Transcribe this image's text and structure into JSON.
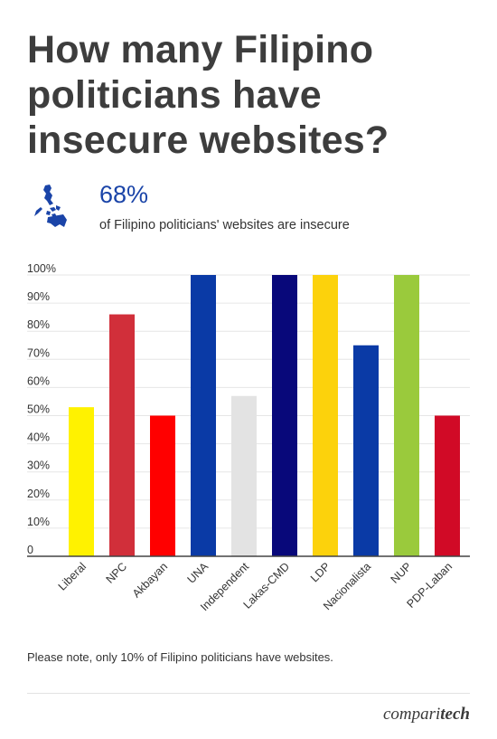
{
  "header": {
    "title": "How many Filipino politicians have insecure websites?"
  },
  "stat": {
    "value": "68%",
    "caption": "of Filipino politicians' websites are insecure",
    "icon": "philippines-map-icon",
    "icon_color": "#1a44a8"
  },
  "chart_data": {
    "type": "bar",
    "categories": [
      "Liberal",
      "NPC",
      "Akbayan",
      "UNA",
      "Independent",
      "Lakas-CMD",
      "LDP",
      "Nacionalista",
      "NUP",
      "PDP-Laban"
    ],
    "values": [
      53,
      86,
      50,
      100,
      57,
      100,
      100,
      75,
      100,
      50
    ],
    "colors": [
      "#fff200",
      "#d12f3a",
      "#ff0000",
      "#0a3aa6",
      "#e3e3e3",
      "#08087a",
      "#fcd20c",
      "#0a3aa6",
      "#9aca3c",
      "#d10a26"
    ],
    "ylim": [
      0,
      100
    ],
    "yticks": [
      0,
      10,
      20,
      30,
      40,
      50,
      60,
      70,
      80,
      90,
      100
    ],
    "ytick_labels": [
      "0",
      "10%",
      "20%",
      "30%",
      "40%",
      "50%",
      "60%",
      "70%",
      "80%",
      "90%",
      "100%"
    ],
    "title": "",
    "xlabel": "",
    "ylabel": "",
    "grid": true
  },
  "footer": {
    "note": "Please note, only 10% of Filipino politicians have websites.",
    "brand_light": "compari",
    "brand_bold": "tech"
  }
}
